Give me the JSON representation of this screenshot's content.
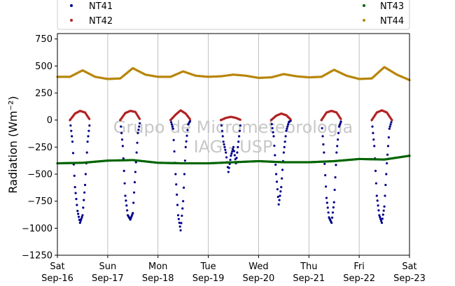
{
  "chart_data": {
    "type": "scatter",
    "title": "",
    "xlabel": "",
    "ylabel": "Radiation (Wm⁻²)",
    "ylim": [
      -1250,
      800
    ],
    "xlim": [
      "2017-09-16",
      "2017-09-23"
    ],
    "yticks": [
      -1250,
      -1000,
      -750,
      -500,
      -250,
      0,
      250,
      500,
      750
    ],
    "ytick_labels": [
      "−1250",
      "−1000",
      "−750",
      "−500",
      "−250",
      "0",
      "250",
      "500",
      "750"
    ],
    "xticks": [
      {
        "day": "Sat",
        "date": "Sep-16"
      },
      {
        "day": "Sun",
        "date": "Sep-17"
      },
      {
        "day": "Mon",
        "date": "Sep-18"
      },
      {
        "day": "Tue",
        "date": "Sep-19"
      },
      {
        "day": "Wed",
        "date": "Sep-20"
      },
      {
        "day": "Thu",
        "date": "Sep-21"
      },
      {
        "day": "Fri",
        "date": "Sep-22"
      },
      {
        "day": "Sat",
        "date": "Sep-23"
      }
    ],
    "grid": "vertical",
    "legend_position": "top",
    "watermark": [
      "Grupo de Micrometeorologia",
      "IAG - USP"
    ],
    "series": [
      {
        "name": "NT41",
        "color": "#00008b",
        "daily_minimum": [
          -950,
          -920,
          -1020,
          -480,
          -780,
          -950,
          -950
        ],
        "points": [
          [
            0.25,
            0
          ],
          [
            0.3,
            -200
          ],
          [
            0.35,
            -620
          ],
          [
            0.4,
            -840
          ],
          [
            0.45,
            -950
          ],
          [
            0.5,
            -880
          ],
          [
            0.55,
            -600
          ],
          [
            0.6,
            -200
          ],
          [
            0.65,
            0
          ],
          [
            1.25,
            0
          ],
          [
            1.3,
            -240
          ],
          [
            1.35,
            -700
          ],
          [
            1.4,
            -880
          ],
          [
            1.45,
            -920
          ],
          [
            1.5,
            -860
          ],
          [
            1.55,
            -480
          ],
          [
            1.6,
            -120
          ],
          [
            1.65,
            0
          ],
          [
            2.25,
            0
          ],
          [
            2.3,
            -80
          ],
          [
            2.35,
            -500
          ],
          [
            2.4,
            -880
          ],
          [
            2.45,
            -1020
          ],
          [
            2.5,
            -750
          ],
          [
            2.55,
            -250
          ],
          [
            2.6,
            -40
          ],
          [
            2.65,
            0
          ],
          [
            3.25,
            0
          ],
          [
            3.3,
            -200
          ],
          [
            3.35,
            -300
          ],
          [
            3.4,
            -480
          ],
          [
            3.45,
            -330
          ],
          [
            3.5,
            -250
          ],
          [
            3.55,
            -400
          ],
          [
            3.6,
            -200
          ],
          [
            3.65,
            0
          ],
          [
            4.25,
            0
          ],
          [
            4.3,
            -150
          ],
          [
            4.35,
            -500
          ],
          [
            4.4,
            -780
          ],
          [
            4.45,
            -620
          ],
          [
            4.5,
            -300
          ],
          [
            4.55,
            -100
          ],
          [
            4.6,
            -20
          ],
          [
            4.65,
            0
          ],
          [
            5.25,
            0
          ],
          [
            5.3,
            -300
          ],
          [
            5.35,
            -720
          ],
          [
            5.4,
            -900
          ],
          [
            5.45,
            -950
          ],
          [
            5.5,
            -760
          ],
          [
            5.55,
            -300
          ],
          [
            5.6,
            -60
          ],
          [
            5.65,
            0
          ],
          [
            6.25,
            0
          ],
          [
            6.3,
            -240
          ],
          [
            6.35,
            -700
          ],
          [
            6.4,
            -880
          ],
          [
            6.45,
            -950
          ],
          [
            6.5,
            -800
          ],
          [
            6.55,
            -400
          ],
          [
            6.6,
            -80
          ],
          [
            6.65,
            0
          ]
        ]
      },
      {
        "name": "NT42",
        "color": "#b22222",
        "daily_maximum": [
          85,
          85,
          90,
          30,
          60,
          85,
          90
        ],
        "points": [
          [
            0.25,
            0
          ],
          [
            0.35,
            60
          ],
          [
            0.45,
            85
          ],
          [
            0.55,
            70
          ],
          [
            0.65,
            0
          ],
          [
            1.25,
            0
          ],
          [
            1.35,
            65
          ],
          [
            1.45,
            85
          ],
          [
            1.55,
            75
          ],
          [
            1.65,
            0
          ],
          [
            2.25,
            0
          ],
          [
            2.35,
            50
          ],
          [
            2.45,
            90
          ],
          [
            2.55,
            60
          ],
          [
            2.65,
            0
          ],
          [
            3.25,
            0
          ],
          [
            3.35,
            20
          ],
          [
            3.45,
            30
          ],
          [
            3.55,
            20
          ],
          [
            3.65,
            0
          ],
          [
            4.25,
            0
          ],
          [
            4.35,
            40
          ],
          [
            4.45,
            60
          ],
          [
            4.55,
            45
          ],
          [
            4.65,
            0
          ],
          [
            5.25,
            0
          ],
          [
            5.35,
            70
          ],
          [
            5.45,
            85
          ],
          [
            5.55,
            70
          ],
          [
            5.65,
            0
          ],
          [
            6.25,
            0
          ],
          [
            6.35,
            70
          ],
          [
            6.45,
            90
          ],
          [
            6.55,
            70
          ],
          [
            6.65,
            0
          ]
        ]
      },
      {
        "name": "NT43",
        "color": "#006400",
        "points": [
          [
            0,
            -400
          ],
          [
            0.5,
            -395
          ],
          [
            1,
            -375
          ],
          [
            1.5,
            -370
          ],
          [
            2,
            -395
          ],
          [
            2.5,
            -400
          ],
          [
            3,
            -400
          ],
          [
            3.5,
            -390
          ],
          [
            4,
            -380
          ],
          [
            4.5,
            -390
          ],
          [
            5,
            -390
          ],
          [
            5.5,
            -380
          ],
          [
            6,
            -360
          ],
          [
            6.5,
            -365
          ],
          [
            7,
            -330
          ]
        ]
      },
      {
        "name": "NT44",
        "color": "#b8860b",
        "points": [
          [
            0,
            400
          ],
          [
            0.25,
            400
          ],
          [
            0.5,
            460
          ],
          [
            0.75,
            400
          ],
          [
            1,
            380
          ],
          [
            1.25,
            385
          ],
          [
            1.5,
            480
          ],
          [
            1.75,
            420
          ],
          [
            2,
            400
          ],
          [
            2.25,
            400
          ],
          [
            2.5,
            450
          ],
          [
            2.75,
            410
          ],
          [
            3,
            400
          ],
          [
            3.25,
            405
          ],
          [
            3.5,
            420
          ],
          [
            3.75,
            410
          ],
          [
            4,
            390
          ],
          [
            4.25,
            395
          ],
          [
            4.5,
            425
          ],
          [
            4.75,
            405
          ],
          [
            5,
            395
          ],
          [
            5.25,
            400
          ],
          [
            5.5,
            465
          ],
          [
            5.75,
            410
          ],
          [
            6,
            380
          ],
          [
            6.25,
            385
          ],
          [
            6.5,
            490
          ],
          [
            6.75,
            420
          ],
          [
            7,
            370
          ]
        ]
      }
    ]
  }
}
